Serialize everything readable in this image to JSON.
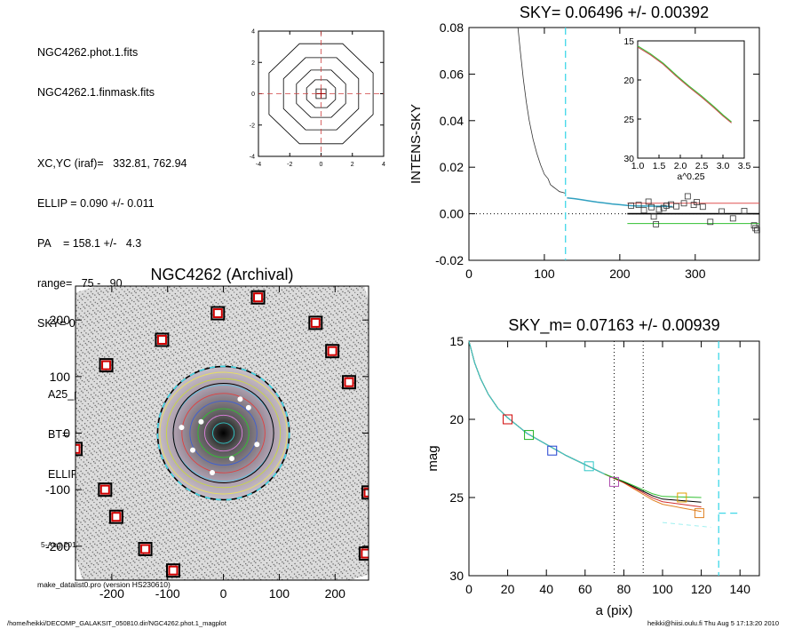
{
  "info": {
    "lines": [
      "NGC4262.phot.1.fits",
      "NGC4262.1.finmask.fits",
      "XC,YC (iraf)=   332.81, 762.94",
      "ELLIP = 0.090 +/- 0.011",
      "PA    = 158.1 +/-   4.3",
      "range=   75.-   90.",
      "SKY= 0.06496 +/- 0.00392",
      "A25_pix= 69.5   T=-2.7  B",
      "BT=  12.40   MABS=-19.37",
      "ELLIP, PA= 0.125   145.0"
    ],
    "date": "5-Aug-2010 17:13:20.00",
    "program": "make_datalist0.pro (version HS230610)"
  },
  "footer": {
    "left": "/home/heikki/DECOMP_GALAKSIT_050810.dir/NGC4262.phot.1_magplot",
    "right": "heikki@hiisi.oulu.fi  Thu Aug  5 17:13:20 2010"
  },
  "chart_data": [
    {
      "id": "contour",
      "type": "contour",
      "xlim": [
        -4,
        4
      ],
      "ylim": [
        -4,
        4
      ],
      "xticks": [
        "-4",
        "-2",
        "0",
        "2",
        "4"
      ],
      "yticks": [
        "-4",
        "-2",
        "0",
        "2",
        "4"
      ],
      "levels_radius": [
        0.45,
        1.0,
        1.7,
        2.6,
        3.6
      ]
    },
    {
      "id": "sky",
      "type": "line",
      "title": "SKY= 0.06496 +/- 0.00392",
      "ylabel": "INTENS-SKY",
      "xlim": [
        0,
        385
      ],
      "ylim": [
        -0.02,
        0.08
      ],
      "xticks": [
        "0",
        "100",
        "200",
        "300"
      ],
      "yticks": [
        "-0.02",
        "0.00",
        "0.02",
        "0.04",
        "0.06",
        "0.08"
      ],
      "profile": [
        [
          65,
          0.08
        ],
        [
          68,
          0.07
        ],
        [
          72,
          0.058
        ],
        [
          76,
          0.048
        ],
        [
          80,
          0.04
        ],
        [
          85,
          0.032
        ],
        [
          90,
          0.026
        ],
        [
          95,
          0.021
        ],
        [
          100,
          0.017
        ],
        [
          105,
          0.015
        ],
        [
          108,
          0.0125
        ],
        [
          112,
          0.0115
        ],
        [
          116,
          0.0105
        ],
        [
          120,
          0.0095
        ],
        [
          124,
          0.0092
        ],
        [
          128,
          0.0088
        ]
      ],
      "profile_cont": [
        [
          130,
          0.0068
        ],
        [
          140,
          0.0065
        ],
        [
          150,
          0.006
        ],
        [
          160,
          0.0055
        ],
        [
          170,
          0.005
        ],
        [
          180,
          0.0046
        ],
        [
          190,
          0.0042
        ],
        [
          200,
          0.0039
        ],
        [
          210,
          0.0036
        ],
        [
          220,
          0.0034
        ],
        [
          240,
          0.0033
        ],
        [
          260,
          0.0032
        ],
        [
          270,
          0.0031
        ]
      ],
      "squares": [
        [
          215,
          0.0035
        ],
        [
          225,
          0.0038
        ],
        [
          232,
          0.0015
        ],
        [
          238,
          0.0052
        ],
        [
          242,
          0.0028
        ],
        [
          245,
          -0.0012
        ],
        [
          248,
          -0.0045
        ],
        [
          252,
          0.0018
        ],
        [
          258,
          0.0025
        ],
        [
          262,
          0.0035
        ],
        [
          268,
          0.004
        ],
        [
          275,
          0.0032
        ],
        [
          285,
          0.0045
        ],
        [
          290,
          0.0075
        ],
        [
          298,
          0.0038
        ],
        [
          302,
          0.005
        ],
        [
          310,
          0.003
        ],
        [
          320,
          -0.0035
        ],
        [
          335,
          0.001
        ],
        [
          350,
          -0.002
        ],
        [
          365,
          0.0012
        ],
        [
          378,
          -0.005
        ],
        [
          380,
          -0.0062
        ],
        [
          382,
          -0.007
        ]
      ],
      "sky_level": 0.0,
      "upper": 0.0045,
      "lower": -0.0042,
      "vline": 128,
      "inset": {
        "xlabel": "a^0.25",
        "xlim": [
          1.0,
          3.5
        ],
        "ylim": [
          30,
          15
        ],
        "xticks": [
          "1.0",
          "1.5",
          "2.0",
          "2.5",
          "3.0",
          "3.5"
        ],
        "yticks": [
          "15",
          "20",
          "25",
          "30"
        ]
      }
    },
    {
      "id": "image",
      "type": "image",
      "title": "NGC4262 (Archival)",
      "xlim": [
        -265,
        260
      ],
      "ylim": [
        -260,
        260
      ],
      "xticks": [
        "-200",
        "-100",
        "0",
        "100",
        "200"
      ],
      "yticks": [
        "-200",
        "-100",
        "0",
        "100",
        "200"
      ],
      "markers": [
        [
          -10,
          212
        ],
        [
          62,
          240
        ],
        [
          -110,
          165
        ],
        [
          165,
          195
        ],
        [
          -210,
          120
        ],
        [
          195,
          145
        ],
        [
          225,
          90
        ],
        [
          -265,
          -28
        ],
        [
          260,
          -105
        ],
        [
          -212,
          -100
        ],
        [
          -192,
          -148
        ],
        [
          -140,
          -205
        ],
        [
          -90,
          -243
        ],
        [
          255,
          -213
        ]
      ]
    },
    {
      "id": "mag",
      "type": "line",
      "title": "SKY_m=  0.07163 +/- 0.00939",
      "xlabel": "a (pix)",
      "ylabel": "mag",
      "xlim": [
        0,
        150
      ],
      "ylim": [
        30,
        15
      ],
      "xticks": [
        "0",
        "20",
        "40",
        "60",
        "80",
        "100",
        "120",
        "140"
      ],
      "yticks": [
        "15",
        "20",
        "25",
        "30"
      ],
      "profile": [
        [
          0,
          15.0
        ],
        [
          3,
          16.4
        ],
        [
          6,
          17.4
        ],
        [
          10,
          18.4
        ],
        [
          15,
          19.3
        ],
        [
          20,
          19.9
        ],
        [
          25,
          20.4
        ],
        [
          30,
          20.9
        ],
        [
          40,
          21.6
        ],
        [
          50,
          22.3
        ],
        [
          60,
          22.9
        ],
        [
          70,
          23.5
        ],
        [
          80,
          24.0
        ],
        [
          90,
          24.6
        ],
        [
          95,
          24.9
        ],
        [
          100,
          25.1
        ],
        [
          110,
          25.2
        ],
        [
          120,
          25.3
        ]
      ],
      "markers": [
        [
          20,
          20.0,
          "#d00000"
        ],
        [
          31,
          21.0,
          "#20b020"
        ],
        [
          43,
          22.0,
          "#2040d0"
        ],
        [
          62,
          23.0,
          "#30c8c8"
        ],
        [
          75,
          24.0,
          "#b050b0"
        ],
        [
          110,
          25.0,
          "#e0a000"
        ],
        [
          119,
          26.0,
          "#e08020"
        ]
      ],
      "vlines_dotted": [
        75,
        90
      ],
      "vline_cyan": 129,
      "sky_mag": 26.0
    }
  ]
}
